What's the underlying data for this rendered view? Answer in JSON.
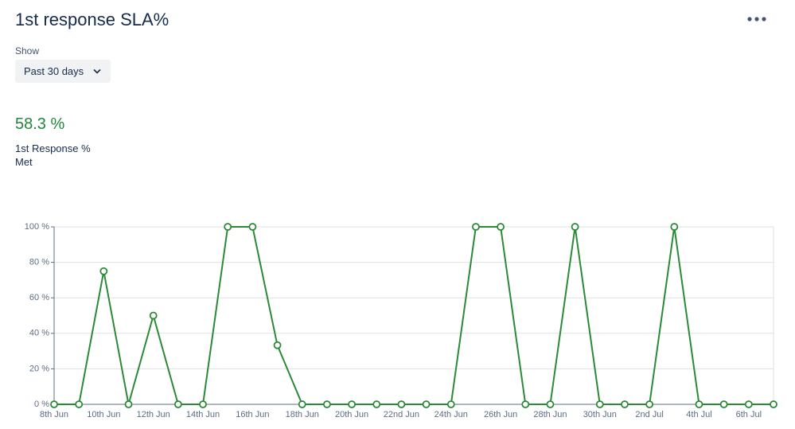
{
  "header": {
    "title": "1st response SLA%"
  },
  "filter": {
    "label": "Show",
    "value": "Past 30 days"
  },
  "summary": {
    "value": "58.3 %",
    "label": "1st Response % Met"
  },
  "chart_data": {
    "type": "line",
    "categories": [
      "8th Jun",
      null,
      "10th Jun",
      null,
      "12th Jun",
      null,
      "14th Jun",
      null,
      "16th Jun",
      null,
      "18th Jun",
      null,
      "20th Jun",
      null,
      "22nd Jun",
      null,
      "24th Jun",
      null,
      "26th Jun",
      null,
      "28th Jun",
      null,
      "30th Jun",
      null,
      "2nd Jul",
      null,
      "4th Jul",
      null,
      "6th Jul",
      null
    ],
    "values": [
      0,
      0,
      75,
      0,
      50,
      0,
      0,
      100,
      100,
      33.3,
      0,
      0,
      0,
      0,
      0,
      0,
      0,
      100,
      100,
      0,
      0,
      100,
      0,
      0,
      0,
      100,
      0,
      0,
      0,
      0
    ],
    "color": "#2a8a36",
    "ylim": [
      0,
      100
    ],
    "yticks": [
      {
        "value": 0,
        "label": "0 %"
      },
      {
        "value": 20,
        "label": "20 %"
      },
      {
        "value": 40,
        "label": "40 %"
      },
      {
        "value": 60,
        "label": "60 %"
      },
      {
        "value": 80,
        "label": "80 %"
      },
      {
        "value": 100,
        "label": "100 %"
      }
    ],
    "grid": true
  }
}
